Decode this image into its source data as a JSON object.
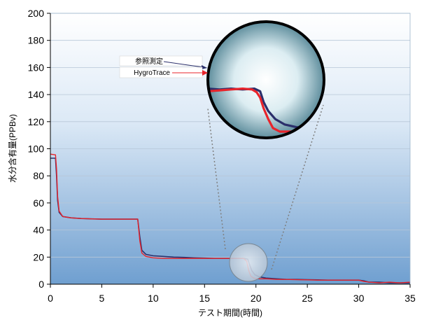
{
  "chart_data": {
    "type": "line",
    "xlabel": "テスト期間(時間)",
    "ylabel": "水分含有量(PPBv)",
    "xlim": [
      0,
      35
    ],
    "ylim": [
      0,
      200
    ],
    "x_ticks": [
      "0",
      "5",
      "10",
      "15",
      "20",
      "25",
      "30",
      "35"
    ],
    "y_ticks": [
      "0",
      "20",
      "40",
      "60",
      "80",
      "100",
      "120",
      "140",
      "160",
      "180",
      "200"
    ],
    "grid": "horizontal",
    "background": "gradient-white-to-blue",
    "series": [
      {
        "name": "参照測定",
        "color": "#2b2f6b",
        "points": [
          [
            0,
            93
          ],
          [
            0.5,
            93
          ],
          [
            0.6,
            80
          ],
          [
            0.7,
            62
          ],
          [
            0.85,
            53
          ],
          [
            1.2,
            50
          ],
          [
            2,
            49
          ],
          [
            3,
            48.5
          ],
          [
            5,
            48
          ],
          [
            6,
            48
          ],
          [
            7,
            48
          ],
          [
            8,
            48
          ],
          [
            8.5,
            48
          ],
          [
            8.7,
            35
          ],
          [
            8.9,
            25
          ],
          [
            9.3,
            22
          ],
          [
            10,
            21
          ],
          [
            11,
            20.5
          ],
          [
            12,
            20
          ],
          [
            13,
            19.8
          ],
          [
            14,
            19.5
          ],
          [
            15,
            19.3
          ],
          [
            16,
            19
          ],
          [
            17,
            19
          ],
          [
            18,
            19
          ],
          [
            18.8,
            19
          ],
          [
            19.2,
            18.5
          ],
          [
            19.4,
            14
          ],
          [
            19.6,
            10
          ],
          [
            19.9,
            7
          ],
          [
            20.3,
            5.5
          ],
          [
            21,
            4.5
          ],
          [
            22,
            4
          ],
          [
            23,
            3.5
          ],
          [
            24,
            3.5
          ],
          [
            25,
            3.3
          ],
          [
            26,
            3.2
          ],
          [
            27,
            3
          ],
          [
            28,
            3
          ],
          [
            29,
            3
          ],
          [
            30,
            3
          ],
          [
            30.5,
            2.5
          ],
          [
            31,
            1.5
          ],
          [
            32,
            1.5
          ],
          [
            33,
            1
          ],
          [
            34,
            1
          ],
          [
            35,
            1
          ]
        ]
      },
      {
        "name": "HygroTrace",
        "color": "#e8242b",
        "points": [
          [
            0,
            96
          ],
          [
            0.5,
            95.5
          ],
          [
            0.6,
            85
          ],
          [
            0.7,
            65
          ],
          [
            0.85,
            54
          ],
          [
            1.2,
            50
          ],
          [
            2,
            49
          ],
          [
            3,
            48.5
          ],
          [
            5,
            48
          ],
          [
            6,
            48
          ],
          [
            7,
            48
          ],
          [
            8,
            48
          ],
          [
            8.5,
            48
          ],
          [
            8.7,
            32
          ],
          [
            8.9,
            23
          ],
          [
            9.3,
            20.5
          ],
          [
            10,
            19.5
          ],
          [
            11,
            19
          ],
          [
            12,
            19
          ],
          [
            13,
            19
          ],
          [
            14,
            19
          ],
          [
            15,
            19
          ],
          [
            16,
            19
          ],
          [
            17,
            19
          ],
          [
            18,
            19
          ],
          [
            18.8,
            19
          ],
          [
            19.1,
            17
          ],
          [
            19.3,
            10
          ],
          [
            19.5,
            6
          ],
          [
            19.8,
            4.5
          ],
          [
            20.2,
            4
          ],
          [
            21,
            4
          ],
          [
            22,
            3.5
          ],
          [
            23,
            3.5
          ],
          [
            24,
            3.3
          ],
          [
            25,
            3.2
          ],
          [
            26,
            3
          ],
          [
            27,
            3
          ],
          [
            28,
            3
          ],
          [
            29,
            3
          ],
          [
            30,
            3
          ],
          [
            30.5,
            2
          ],
          [
            31,
            1.5
          ],
          [
            32,
            1
          ],
          [
            33,
            1.5
          ],
          [
            34,
            1
          ],
          [
            35,
            1.5
          ]
        ]
      }
    ],
    "inset": {
      "type": "zoom-magnifier",
      "series": [
        {
          "name": "参照測定",
          "color": "#2b2f6b",
          "points": [
            [
              0,
              0.52
            ],
            [
              0.1,
              0.53
            ],
            [
              0.2,
              0.52
            ],
            [
              0.3,
              0.53
            ],
            [
              0.4,
              0.52
            ],
            [
              0.45,
              0.55
            ],
            [
              0.48,
              0.67
            ],
            [
              0.52,
              0.77
            ],
            [
              0.58,
              0.86
            ],
            [
              0.66,
              0.92
            ],
            [
              0.76,
              0.95
            ],
            [
              0.88,
              0.97
            ],
            [
              1,
              0.98
            ]
          ]
        },
        {
          "name": "HygroTrace",
          "color": "#e8242b",
          "points": [
            [
              0,
              0.55
            ],
            [
              0.1,
              0.54
            ],
            [
              0.2,
              0.53
            ],
            [
              0.3,
              0.52
            ],
            [
              0.38,
              0.53
            ],
            [
              0.42,
              0.56
            ],
            [
              0.45,
              0.62
            ],
            [
              0.48,
              0.74
            ],
            [
              0.52,
              0.86
            ],
            [
              0.56,
              0.96
            ],
            [
              0.62,
              1.0
            ],
            [
              0.72,
              1.0
            ],
            [
              0.82,
              1.0
            ],
            [
              0.92,
              0.99
            ],
            [
              1,
              0.98
            ]
          ]
        }
      ]
    },
    "legend": [
      {
        "label": "参照測定",
        "color": "#2b2f6b"
      },
      {
        "label": "HygroTrace",
        "color": "#e8242b"
      }
    ]
  }
}
